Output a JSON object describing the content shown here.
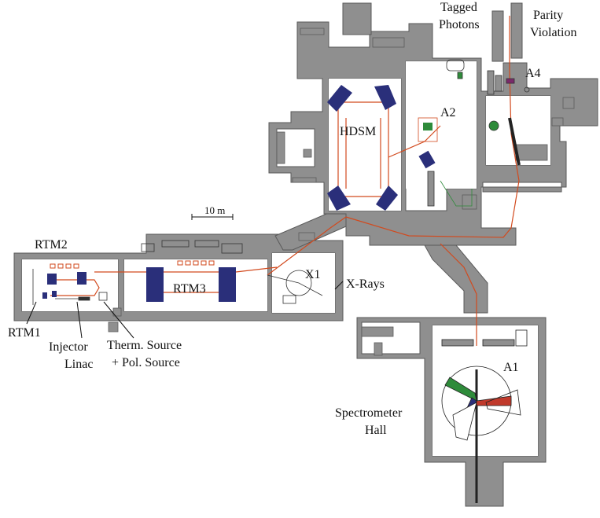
{
  "labels": {
    "tagged_photons_1": "Tagged",
    "tagged_photons_2": "Photons",
    "parity_1": "Parity",
    "parity_2": "Violation",
    "a4": "A4",
    "a2": "A2",
    "hdsm": "HDSM",
    "scale": "10 m",
    "rtm2": "RTM2",
    "rtm3": "RTM3",
    "x1": "X1",
    "xrays": "X-Rays",
    "rtm1": "RTM1",
    "injector_1": "Injector",
    "injector_2": "Linac",
    "therm_1": "Therm. Source",
    "therm_2": "+ Pol. Source",
    "a1": "A1",
    "spectrometer_1": "Spectrometer",
    "spectrometer_2": "Hall"
  },
  "colors": {
    "wall": "#8f8f8f",
    "wall_edge": "#5a5a5a",
    "floor": "#ffffff",
    "beamline": "#d24a1e",
    "magnet": "#2a2f7a",
    "spectrometer_green": "#2e8b3a",
    "spectrometer_red": "#c0392b",
    "text": "#111111"
  }
}
